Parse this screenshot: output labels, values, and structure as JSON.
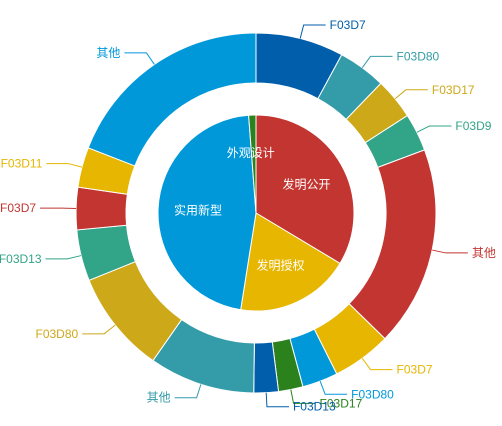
{
  "chart_data": {
    "type": "pie",
    "inner": {
      "slices": [
        {
          "label": "发明公开",
          "value": 33.6,
          "color": "#c23531"
        },
        {
          "label": "发明授权",
          "value": 18.9,
          "color": "#e6b600"
        },
        {
          "label": "实用新型",
          "value": 46.3,
          "color": "#0098d9"
        },
        {
          "label": "外观设计",
          "value": 1.2,
          "color": "#2b821d"
        }
      ]
    },
    "outer": {
      "slices": [
        {
          "label": "F03D7",
          "value": 7.9,
          "color": "#005eaa"
        },
        {
          "label": "F03D80",
          "value": 4.3,
          "color": "#339ca8"
        },
        {
          "label": "F03D17",
          "value": 3.7,
          "color": "#cda819"
        },
        {
          "label": "F03D9",
          "value": 3.4,
          "color": "#32a487"
        },
        {
          "label": "其他",
          "value": 18.0,
          "color": "#c23531"
        },
        {
          "label": "F03D7",
          "value": 5.3,
          "color": "#e6b600"
        },
        {
          "label": "F03D80",
          "value": 3.2,
          "color": "#0098d9"
        },
        {
          "label": "F03D17",
          "value": 2.2,
          "color": "#2b821d"
        },
        {
          "label": "F03D13",
          "value": 2.2,
          "color": "#005eaa"
        },
        {
          "label": "其他",
          "value": 9.5,
          "color": "#339ca8"
        },
        {
          "label": "F03D80",
          "value": 9.2,
          "color": "#cda819"
        },
        {
          "label": "F03D13",
          "value": 4.6,
          "color": "#32a487"
        },
        {
          "label": "F03D7",
          "value": 3.8,
          "color": "#c23531"
        },
        {
          "label": "F03D11",
          "value": 3.6,
          "color": "#e6b600"
        },
        {
          "label": "其他",
          "value": 19.1,
          "color": "#0098d9"
        }
      ]
    }
  }
}
